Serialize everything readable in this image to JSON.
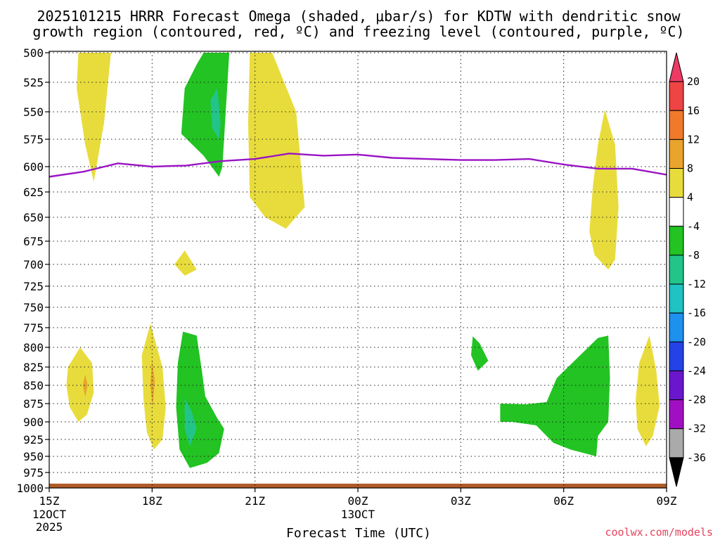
{
  "chart_data": {
    "type": "heatmap",
    "title_line1": "2025101215 HRRR Forecast Omega (shaded, μbar/s) for KDTW with dendritic snow",
    "title_line2": "growth region (contoured, red, ºC) and freezing level (contoured, purple, ºC)",
    "xlabel": "Forecast Time (UTC)",
    "ylabel": "",
    "xlim": [
      0,
      18
    ],
    "ylim": [
      500,
      1000
    ],
    "pressure_ticks": [
      "500",
      "525",
      "550",
      "575",
      "600",
      "625",
      "650",
      "675",
      "700",
      "725",
      "750",
      "775",
      "800",
      "825",
      "850",
      "875",
      "900",
      "925",
      "950",
      "975",
      "1000"
    ],
    "x_ticks": [
      {
        "h": 0,
        "label": "15Z",
        "sub1": "12OCT",
        "sub2": "2025"
      },
      {
        "h": 3,
        "label": "18Z",
        "sub1": "",
        "sub2": ""
      },
      {
        "h": 6,
        "label": "21Z",
        "sub1": "",
        "sub2": ""
      },
      {
        "h": 9,
        "label": "00Z",
        "sub1": "13OCT",
        "sub2": ""
      },
      {
        "h": 12,
        "label": "03Z",
        "sub1": "",
        "sub2": ""
      },
      {
        "h": 15,
        "label": "06Z",
        "sub1": "",
        "sub2": ""
      },
      {
        "h": 18,
        "label": "09Z",
        "sub1": "",
        "sub2": ""
      }
    ],
    "colorbar": {
      "labels": [
        "20",
        "16",
        "12",
        "8",
        "4",
        "-4",
        "-8",
        "-12",
        "-16",
        "-20",
        "-24",
        "-28",
        "-32",
        "-36"
      ],
      "colors": [
        "#ee3a64",
        "#ee4444",
        "#f07a2a",
        "#e8a42c",
        "#e8dc3c",
        "#ffffff",
        "#22c322",
        "#22c48a",
        "#20c2c2",
        "#1e90ee",
        "#2442e6",
        "#6a16cc",
        "#a010c2",
        "#aaaaaa",
        "#000000"
      ]
    },
    "freezing_level": {
      "name": "Freezing level (ºC)",
      "color": "#9a14c4",
      "x": [
        0,
        1,
        2,
        3,
        4,
        5,
        6,
        7,
        8,
        9,
        10,
        11,
        12,
        13,
        14,
        15,
        16,
        17,
        18
      ],
      "y": [
        610,
        605,
        597,
        600,
        599,
        595,
        593,
        588,
        590,
        589,
        592,
        593,
        594,
        594,
        593,
        598,
        602,
        602,
        608
      ]
    },
    "regions": [
      {
        "name": "up-yellow-1",
        "color": "#e8dc3c",
        "points": [
          [
            0.85,
            500
          ],
          [
            1.8,
            500
          ],
          [
            1.6,
            560
          ],
          [
            1.3,
            615
          ],
          [
            1.05,
            580
          ],
          [
            0.8,
            530
          ]
        ]
      },
      {
        "name": "up-yellow-2",
        "color": "#e8dc3c",
        "points": [
          [
            5.85,
            500
          ],
          [
            6.5,
            500
          ],
          [
            7.2,
            550
          ],
          [
            7.45,
            640
          ],
          [
            6.9,
            662
          ],
          [
            6.3,
            650
          ],
          [
            5.85,
            630
          ],
          [
            5.8,
            560
          ]
        ]
      },
      {
        "name": "up-green-1",
        "color": "#22c322",
        "points": [
          [
            4.5,
            500
          ],
          [
            5.25,
            500
          ],
          [
            5.05,
            600
          ],
          [
            4.95,
            610
          ],
          [
            4.5,
            590
          ],
          [
            3.85,
            570
          ],
          [
            3.95,
            530
          ],
          [
            4.3,
            510
          ]
        ]
      },
      {
        "name": "up-teal-1",
        "color": "#22c48a",
        "points": [
          [
            4.9,
            530
          ],
          [
            5.0,
            560
          ],
          [
            4.95,
            575
          ],
          [
            4.75,
            565
          ],
          [
            4.7,
            540
          ]
        ]
      },
      {
        "name": "mid-yellow-small",
        "color": "#e8dc3c",
        "points": [
          [
            3.65,
            700
          ],
          [
            3.95,
            685
          ],
          [
            4.3,
            706
          ],
          [
            3.95,
            713
          ]
        ]
      },
      {
        "name": "right-yellow-upper",
        "color": "#e8dc3c",
        "points": [
          [
            16.2,
            548
          ],
          [
            16.5,
            580
          ],
          [
            16.6,
            640
          ],
          [
            16.5,
            695
          ],
          [
            16.3,
            706
          ],
          [
            15.9,
            690
          ],
          [
            15.75,
            665
          ],
          [
            15.85,
            620
          ],
          [
            16.0,
            580
          ]
        ]
      },
      {
        "name": "low-yellow-1",
        "color": "#e8dc3c",
        "points": [
          [
            0.55,
            825
          ],
          [
            0.9,
            800
          ],
          [
            1.25,
            820
          ],
          [
            1.3,
            860
          ],
          [
            1.1,
            890
          ],
          [
            0.85,
            900
          ],
          [
            0.6,
            880
          ],
          [
            0.5,
            850
          ]
        ]
      },
      {
        "name": "low-orange-1",
        "color": "#e8a42c",
        "points": [
          [
            1.05,
            835
          ],
          [
            1.12,
            850
          ],
          [
            1.05,
            866
          ],
          [
            0.98,
            850
          ]
        ]
      },
      {
        "name": "low-yellow-2",
        "color": "#e8dc3c",
        "points": [
          [
            2.95,
            770
          ],
          [
            3.3,
            825
          ],
          [
            3.4,
            880
          ],
          [
            3.3,
            925
          ],
          [
            3.05,
            940
          ],
          [
            2.85,
            915
          ],
          [
            2.75,
            870
          ],
          [
            2.7,
            810
          ]
        ]
      },
      {
        "name": "low-orange-2",
        "color": "#e8a42c",
        "points": [
          [
            3.0,
            815
          ],
          [
            3.08,
            845
          ],
          [
            3.02,
            880
          ],
          [
            2.95,
            850
          ]
        ]
      },
      {
        "name": "low-green-1",
        "color": "#22c322",
        "points": [
          [
            3.9,
            780
          ],
          [
            4.3,
            785
          ],
          [
            4.45,
            830
          ],
          [
            4.55,
            865
          ],
          [
            4.9,
            895
          ],
          [
            5.1,
            910
          ],
          [
            4.95,
            945
          ],
          [
            4.6,
            960
          ],
          [
            4.1,
            968
          ],
          [
            3.8,
            940
          ],
          [
            3.7,
            880
          ],
          [
            3.75,
            820
          ]
        ]
      },
      {
        "name": "low-teal-1",
        "color": "#22c48a",
        "points": [
          [
            3.95,
            868
          ],
          [
            4.15,
            885
          ],
          [
            4.3,
            910
          ],
          [
            4.1,
            935
          ],
          [
            3.95,
            910
          ]
        ]
      },
      {
        "name": "mid-green-small",
        "color": "#22c322",
        "points": [
          [
            12.35,
            786
          ],
          [
            12.55,
            795
          ],
          [
            12.8,
            817
          ],
          [
            12.5,
            830
          ],
          [
            12.3,
            810
          ]
        ]
      },
      {
        "name": "right-green-big",
        "color": "#22c322",
        "points": [
          [
            16.0,
            788
          ],
          [
            16.3,
            785
          ],
          [
            16.35,
            840
          ],
          [
            16.3,
            900
          ],
          [
            16.0,
            920
          ],
          [
            15.95,
            950
          ],
          [
            15.2,
            940
          ],
          [
            14.7,
            930
          ],
          [
            14.2,
            905
          ],
          [
            13.5,
            900
          ],
          [
            13.15,
            900
          ],
          [
            13.15,
            875
          ],
          [
            13.9,
            876
          ],
          [
            14.5,
            873
          ],
          [
            14.8,
            840
          ]
        ]
      },
      {
        "name": "right-yellow-lower",
        "color": "#e8dc3c",
        "points": [
          [
            17.5,
            785
          ],
          [
            17.7,
            830
          ],
          [
            17.8,
            878
          ],
          [
            17.6,
            920
          ],
          [
            17.4,
            935
          ],
          [
            17.15,
            910
          ],
          [
            17.1,
            870
          ],
          [
            17.2,
            820
          ]
        ]
      }
    ],
    "ground": {
      "name": "terrain",
      "color": "#b05a28",
      "top": 993
    },
    "watermark": "coolwx.com/models"
  }
}
